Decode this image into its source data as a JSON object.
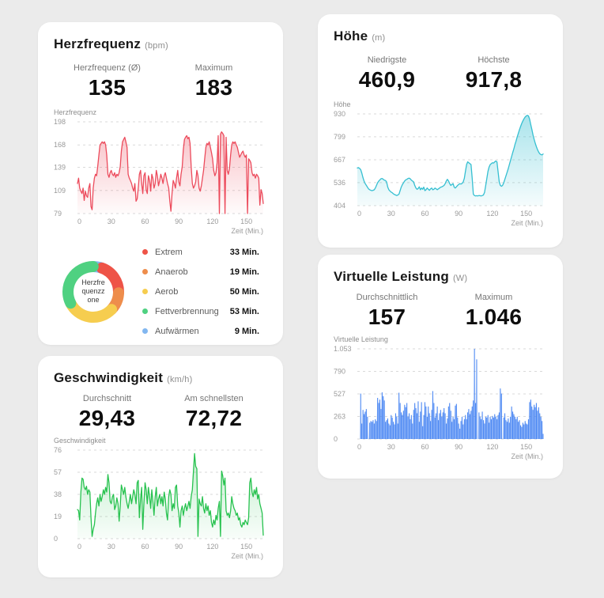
{
  "page": {
    "background": "#ebebeb"
  },
  "cards": {
    "heart_rate": {
      "title": "Herzfrequenz",
      "unit": "(bpm)",
      "stats": [
        {
          "label": "Herzfrequenz (Ø)",
          "value": "135"
        },
        {
          "label": "Maximum",
          "value": "183"
        }
      ],
      "chart_label": "Herzfrequenz",
      "zone_center": [
        "Herzfre",
        "quenzz",
        "one"
      ],
      "zones": [
        {
          "name": "Extrem",
          "minutes": "33 Min.",
          "value": 33,
          "color": "#ee5347"
        },
        {
          "name": "Anaerob",
          "minutes": "19 Min.",
          "value": 19,
          "color": "#ee8d4c"
        },
        {
          "name": "Aerob",
          "minutes": "50 Min.",
          "value": 50,
          "color": "#f6cd4f"
        },
        {
          "name": "Fettverbrennung",
          "minutes": "53 Min.",
          "value": 53,
          "color": "#4fd181"
        },
        {
          "name": "Aufwärmen",
          "minutes": "9 Min.",
          "value": 9,
          "color": "#82b7f0"
        }
      ],
      "donut_order": [
        4,
        0,
        1,
        2,
        3
      ]
    },
    "altitude": {
      "title": "Höhe",
      "unit": "(m)",
      "stats": [
        {
          "label": "Niedrigste",
          "value": "460,9"
        },
        {
          "label": "Höchste",
          "value": "917,8"
        }
      ],
      "chart_label": "Höhe"
    },
    "speed": {
      "title": "Geschwindigkeit",
      "unit": "(km/h)",
      "stats": [
        {
          "label": "Durchschnitt",
          "value": "29,43"
        },
        {
          "label": "Am schnellsten",
          "value": "72,72"
        }
      ],
      "chart_label": "Geschwindigkeit"
    },
    "power": {
      "title": "Virtuelle Leistung",
      "unit": "(W)",
      "stats": [
        {
          "label": "Durchschnittlich",
          "value": "157"
        },
        {
          "label": "Maximum",
          "value": "1.046"
        }
      ],
      "chart_label": "Virtuelle Leistung"
    }
  },
  "chart_data": [
    {
      "id": "herzfrequenz",
      "type": "line",
      "title": "Herzfrequenz",
      "ylabel": "Herzfrequenz",
      "xlabel": "Zeit (Min.)",
      "color": "#ec4b5c",
      "fill_opacity": [
        0.34,
        0.02
      ],
      "ylim": [
        79,
        198
      ],
      "yticks": [
        79,
        109,
        139,
        168,
        198
      ],
      "ytick_labels": [
        "79",
        "109",
        "139",
        "168",
        "198"
      ],
      "xlim": [
        0,
        165
      ],
      "xticks": [
        0,
        30,
        60,
        90,
        120,
        150
      ],
      "xtick_labels": [
        "0",
        "30",
        "60",
        "90",
        "120",
        "150"
      ],
      "values": [
        118,
        125,
        112,
        108,
        105,
        112,
        96,
        108,
        102,
        100,
        112,
        118,
        88,
        84,
        112,
        125,
        130,
        128,
        140,
        155,
        168,
        170,
        172,
        170,
        172,
        168,
        155,
        130,
        126,
        132,
        135,
        130,
        128,
        132,
        126,
        130,
        128,
        132,
        140,
        160,
        172,
        175,
        178,
        172,
        165,
        130,
        125,
        122,
        118,
        112,
        108,
        118,
        95,
        98,
        112,
        130,
        135,
        118,
        105,
        128,
        132,
        110,
        105,
        128,
        122,
        108,
        130,
        125,
        112,
        118,
        135,
        128,
        115,
        122,
        130,
        125,
        118,
        128,
        132,
        125,
        118,
        112,
        95,
        82,
        105,
        122,
        118,
        112,
        125,
        135,
        120,
        115,
        130,
        140,
        162,
        175,
        178,
        180,
        176,
        178,
        170,
        140,
        118,
        112,
        115,
        120,
        135,
        128,
        112,
        108,
        115,
        125,
        135,
        150,
        165,
        170,
        168,
        172,
        165,
        158,
        150,
        135,
        128,
        132,
        145,
        180,
        79,
        182,
        185,
        183,
        180,
        79,
        178,
        135,
        130,
        138,
        155,
        168,
        172,
        170,
        172,
        168,
        165,
        158,
        152,
        155,
        158,
        160,
        155,
        152,
        155,
        79,
        150,
        148,
        145,
        132,
        128,
        130,
        125,
        130,
        128,
        125,
        90,
        110,
        105,
        92
      ]
    },
    {
      "id": "hoehe",
      "type": "line",
      "title": "Höhe",
      "ylabel": "Höhe",
      "xlabel": "Zeit (Min.)",
      "color": "#35bfd1",
      "fill_opacity": [
        0.42,
        0.05
      ],
      "ylim": [
        404,
        930
      ],
      "yticks": [
        404,
        536,
        667,
        799,
        930
      ],
      "ytick_labels": [
        "404",
        "536",
        "667",
        "799",
        "930"
      ],
      "xlim": [
        0,
        165
      ],
      "xticks": [
        0,
        30,
        60,
        90,
        120,
        150
      ],
      "xtick_labels": [
        "0",
        "30",
        "60",
        "90",
        "120",
        "150"
      ],
      "values": [
        620,
        622,
        618,
        610,
        590,
        565,
        545,
        530,
        520,
        510,
        500,
        495,
        492,
        490,
        492,
        495,
        505,
        520,
        535,
        545,
        552,
        558,
        560,
        555,
        550,
        548,
        540,
        510,
        495,
        488,
        482,
        478,
        472,
        468,
        465,
        462,
        465,
        470,
        490,
        510,
        525,
        535,
        545,
        552,
        555,
        560,
        562,
        558,
        550,
        545,
        540,
        520,
        505,
        498,
        502,
        512,
        495,
        505,
        498,
        510,
        490,
        495,
        505,
        498,
        492,
        500,
        505,
        495,
        498,
        505,
        500,
        495,
        500,
        505,
        510,
        512,
        515,
        520,
        530,
        545,
        555,
        545,
        530,
        520,
        525,
        530,
        510,
        505,
        512,
        520,
        525,
        530,
        528,
        532,
        540,
        560,
        600,
        640,
        655,
        650,
        645,
        640,
        560,
        470,
        462,
        460,
        461,
        460,
        462,
        461,
        460,
        462,
        465,
        480,
        520,
        560,
        600,
        625,
        640,
        645,
        650,
        648,
        655,
        660,
        655,
        600,
        540,
        520,
        515,
        520,
        535,
        555,
        575,
        595,
        615,
        640,
        662,
        685,
        708,
        730,
        755,
        775,
        798,
        820,
        840,
        858,
        875,
        890,
        902,
        912,
        918,
        922,
        918,
        900,
        870,
        840,
        810,
        785,
        762,
        742,
        725,
        712,
        702,
        697,
        695,
        700
      ]
    },
    {
      "id": "geschwindigkeit",
      "type": "line",
      "title": "Geschwindigkeit",
      "ylabel": "Geschwindigkeit",
      "xlabel": "Zeit (Min.)",
      "color": "#27c24f",
      "fill_opacity": [
        0.28,
        0.03
      ],
      "ylim": [
        0,
        76
      ],
      "yticks": [
        0,
        19,
        38,
        57,
        76
      ],
      "ytick_labels": [
        "0",
        "19",
        "38",
        "57",
        "76"
      ],
      "xlim": [
        0,
        165
      ],
      "xticks": [
        0,
        30,
        60,
        90,
        120,
        150
      ],
      "xtick_labels": [
        "0",
        "30",
        "60",
        "90",
        "120",
        "150"
      ],
      "values": [
        25,
        24,
        16,
        40,
        52,
        51,
        44,
        42,
        45,
        38,
        42,
        40,
        18,
        2,
        8,
        12,
        22,
        30,
        35,
        28,
        38,
        32,
        36,
        42,
        38,
        44,
        40,
        55,
        48,
        32,
        30,
        36,
        38,
        25,
        28,
        35,
        30,
        15,
        28,
        46,
        42,
        38,
        44,
        36,
        30,
        26,
        32,
        38,
        30,
        36,
        42,
        38,
        30,
        48,
        50,
        18,
        34,
        44,
        8,
        30,
        48,
        42,
        30,
        44,
        36,
        26,
        42,
        32,
        20,
        36,
        44,
        28,
        34,
        38,
        30,
        36,
        28,
        40,
        34,
        22,
        16,
        36,
        42,
        38,
        24,
        30,
        26,
        44,
        46,
        28,
        22,
        10,
        24,
        28,
        20,
        26,
        30,
        24,
        28,
        32,
        26,
        36,
        42,
        58,
        73,
        62,
        60,
        2,
        34,
        30,
        28,
        36,
        26,
        22,
        30,
        24,
        28,
        20,
        24,
        14,
        10,
        16,
        12,
        20,
        16,
        26,
        32,
        2,
        58,
        54,
        46,
        52,
        24,
        20,
        22,
        18,
        24,
        36,
        30,
        26,
        24,
        20,
        22,
        16,
        18,
        12,
        10,
        14,
        12,
        16,
        14,
        12,
        18,
        48,
        52,
        40,
        36,
        42,
        38,
        44,
        34,
        38,
        30,
        26,
        22,
        3
      ]
    },
    {
      "id": "virtuelle_leistung",
      "type": "bar",
      "title": "Virtuelle Leistung",
      "ylabel": "Virtuelle Leistung",
      "xlabel": "Zeit (Min.)",
      "color": "#3d7ef2",
      "fill_opacity": [
        0.15,
        0.15
      ],
      "ylim": [
        0,
        1053
      ],
      "yticks": [
        0,
        263,
        527,
        790,
        1053
      ],
      "ytick_labels": [
        "0",
        "263",
        "527",
        "790",
        "1.053"
      ],
      "xlim": [
        0,
        165
      ],
      "xticks": [
        0,
        30,
        60,
        90,
        120,
        150
      ],
      "xtick_labels": [
        "0",
        "30",
        "60",
        "90",
        "120",
        "150"
      ],
      "values": [
        0,
        0,
        0,
        530,
        180,
        340,
        290,
        320,
        350,
        260,
        0,
        190,
        210,
        200,
        220,
        180,
        230,
        210,
        480,
        420,
        460,
        350,
        545,
        500,
        450,
        200,
        220,
        240,
        180,
        160,
        280,
        250,
        200,
        170,
        300,
        260,
        180,
        540,
        420,
        310,
        280,
        330,
        400,
        370,
        420,
        260,
        300,
        230,
        280,
        180,
        340,
        420,
        360,
        300,
        440,
        200,
        320,
        430,
        150,
        280,
        430,
        380,
        260,
        380,
        300,
        210,
        340,
        560,
        420,
        250,
        300,
        380,
        220,
        300,
        340,
        260,
        310,
        360,
        300,
        180,
        240,
        380,
        420,
        330,
        200,
        260,
        230,
        390,
        410,
        250,
        180,
        120,
        210,
        260,
        170,
        230,
        280,
        230,
        310,
        350,
        290,
        330,
        380,
        450,
        1053,
        420,
        930,
        0,
        310,
        260,
        230,
        320,
        220,
        180,
        260,
        250,
        280,
        190,
        260,
        230,
        270,
        250,
        290,
        260,
        230,
        280,
        310,
        590,
        530,
        0,
        250,
        300,
        220,
        200,
        240,
        190,
        260,
        380,
        320,
        290,
        260,
        230,
        260,
        200,
        220,
        160,
        140,
        190,
        170,
        210,
        180,
        170,
        230,
        430,
        460,
        380,
        340,
        400,
        370,
        420,
        330,
        370,
        300,
        260,
        210,
        60
      ]
    }
  ]
}
